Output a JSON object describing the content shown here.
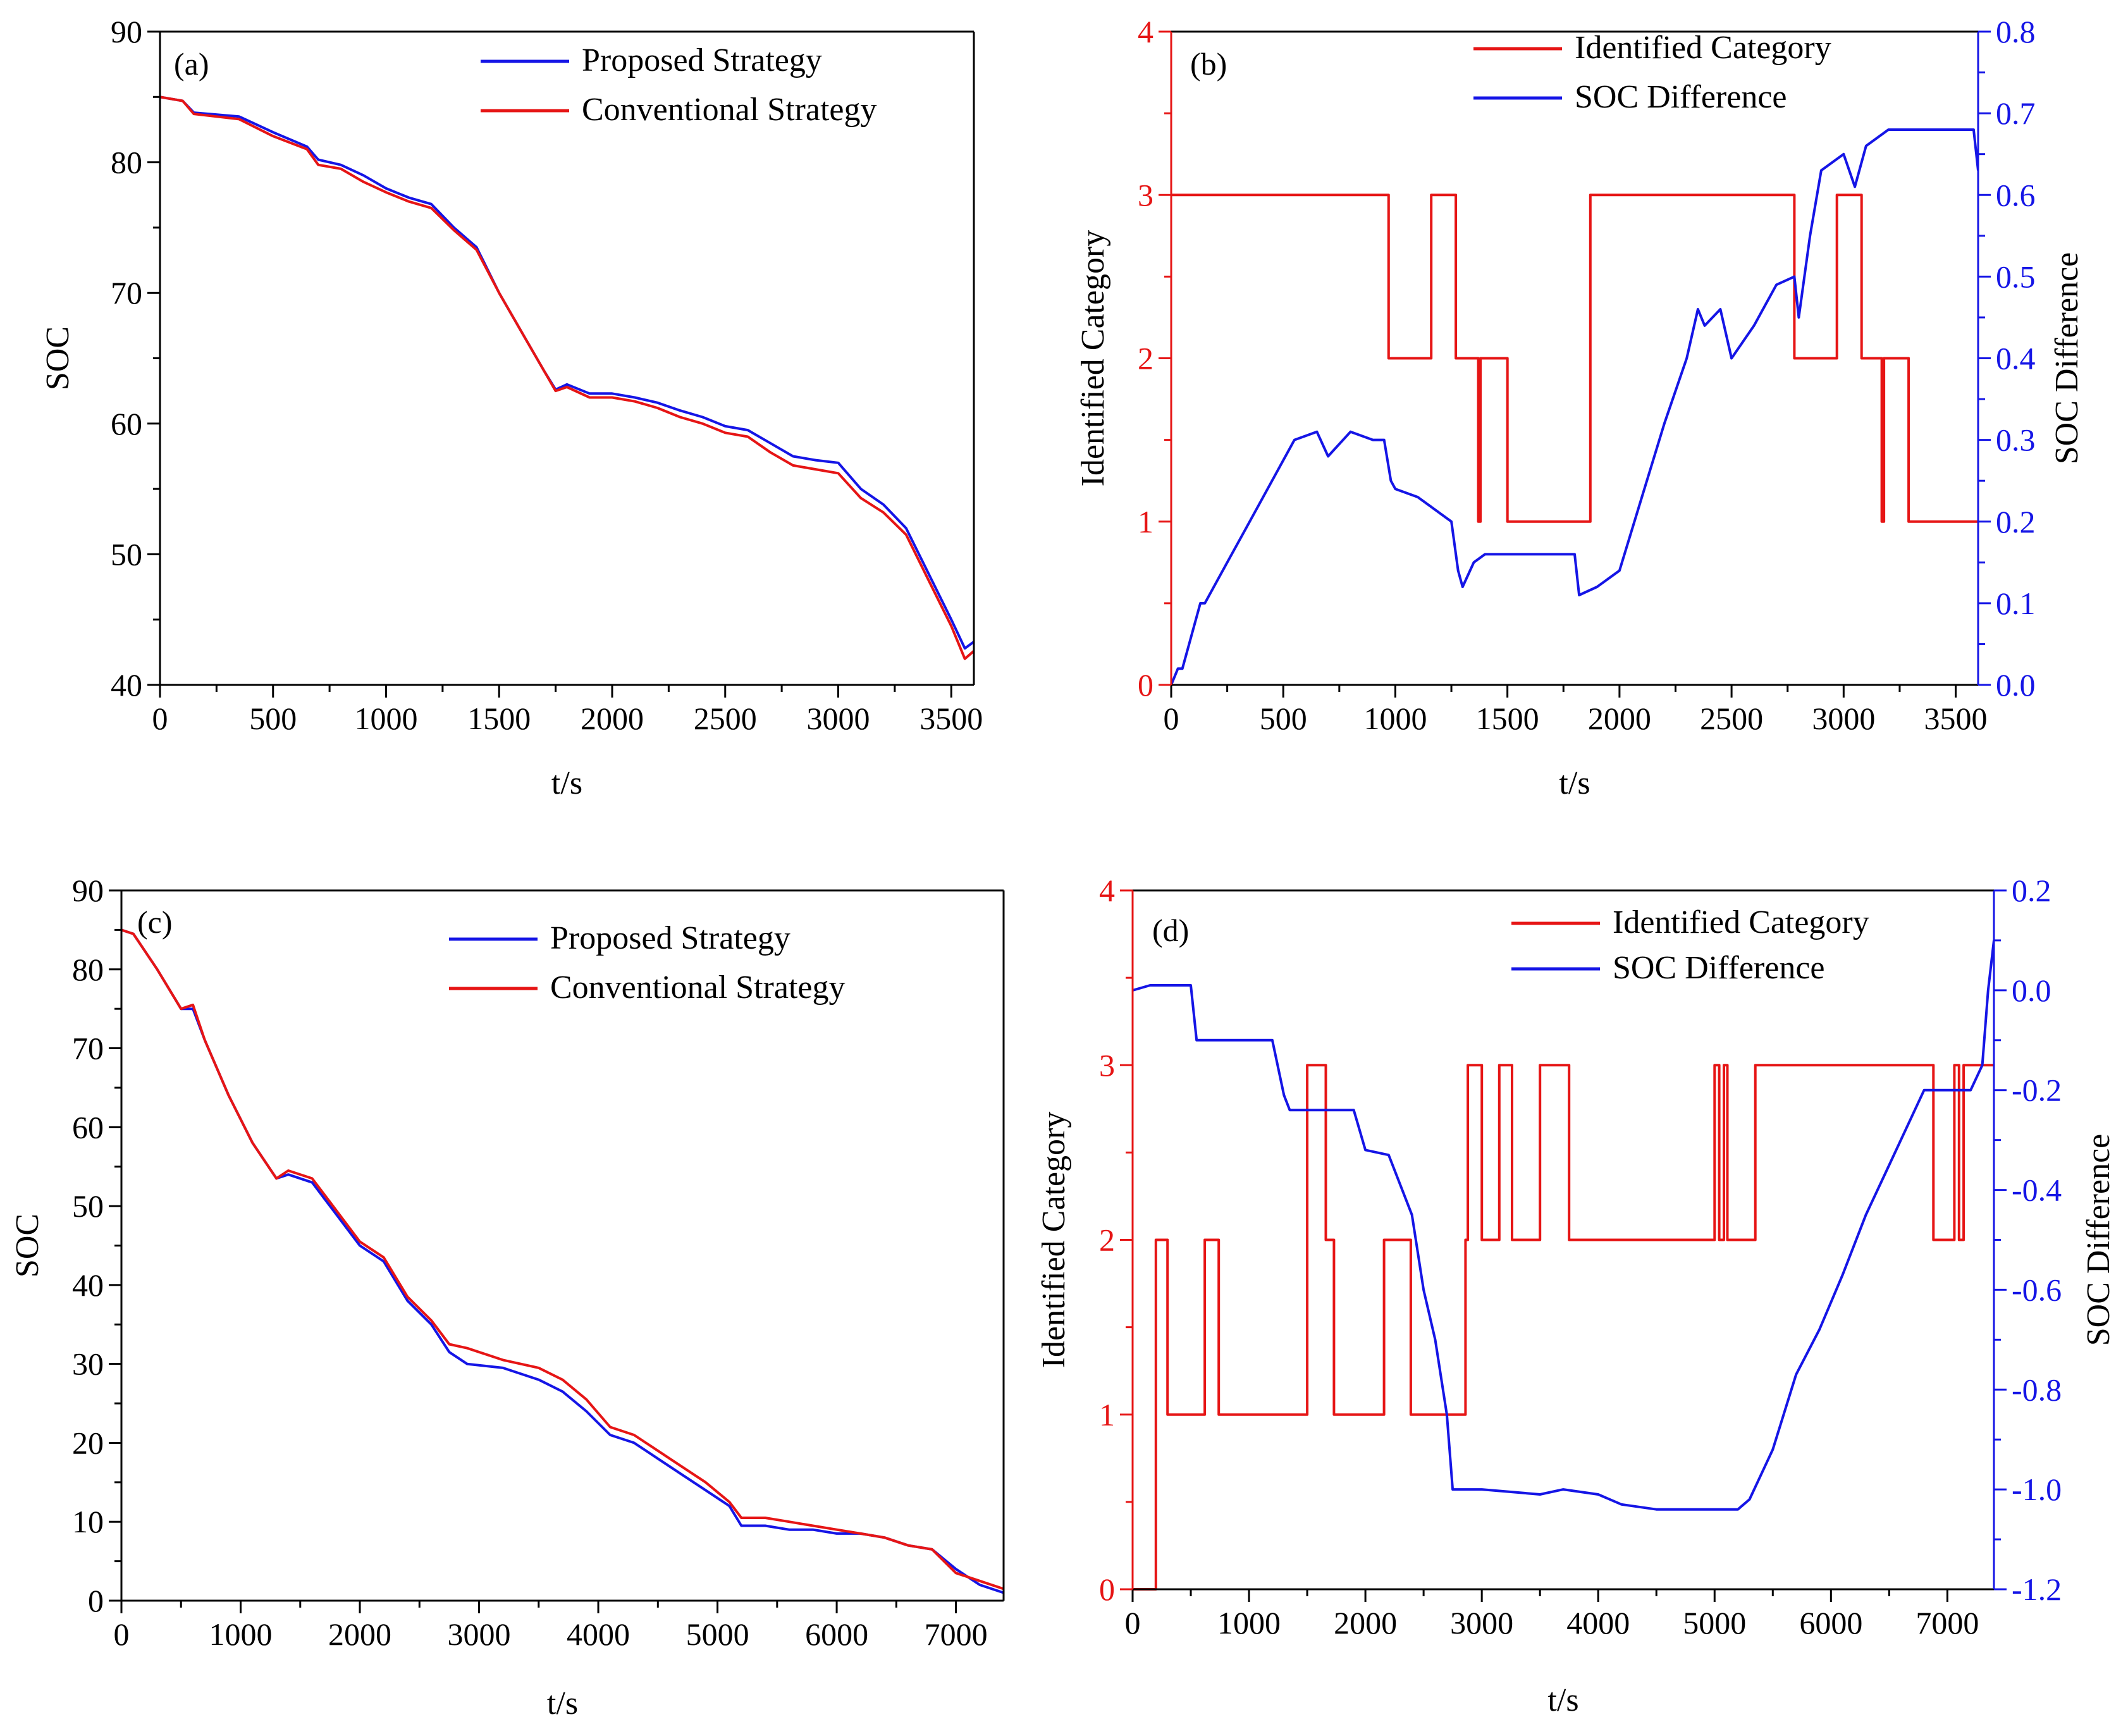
{
  "chart_data": [
    {
      "id": "a",
      "panel_label": "(a)",
      "type": "line",
      "xlabel": "t/s",
      "ylabel": "SOC",
      "xlim": [
        0,
        3600
      ],
      "ylim": [
        40,
        90
      ],
      "xticks": [
        0,
        500,
        1000,
        1500,
        2000,
        2500,
        3000,
        3500
      ],
      "yticks": [
        40,
        50,
        60,
        70,
        80,
        90
      ],
      "legend_position": "top-right",
      "series": [
        {
          "name": "Proposed Strategy",
          "color": "#1515e6",
          "axis": "left",
          "x": [
            0,
            100,
            150,
            350,
            500,
            650,
            700,
            800,
            900,
            1000,
            1100,
            1200,
            1300,
            1400,
            1500,
            1600,
            1700,
            1750,
            1800,
            1900,
            2000,
            2100,
            2200,
            2300,
            2400,
            2500,
            2600,
            2700,
            2800,
            2900,
            3000,
            3100,
            3200,
            3300,
            3400,
            3500,
            3560,
            3600
          ],
          "y": [
            85,
            84.7,
            83.8,
            83.5,
            82.3,
            81.2,
            80.2,
            79.8,
            79,
            78,
            77.3,
            76.8,
            75,
            73.5,
            70,
            67,
            64,
            62.6,
            63,
            62.3,
            62.3,
            62,
            61.6,
            61,
            60.5,
            59.8,
            59.5,
            58.5,
            57.5,
            57.2,
            57,
            55,
            53.8,
            52,
            48.5,
            45,
            42.8,
            43.3
          ]
        },
        {
          "name": "Conventional Strategy",
          "color": "#e61515",
          "axis": "left",
          "x": [
            0,
            100,
            150,
            350,
            500,
            650,
            700,
            800,
            900,
            1000,
            1100,
            1200,
            1300,
            1400,
            1500,
            1600,
            1700,
            1750,
            1800,
            1900,
            2000,
            2100,
            2200,
            2300,
            2400,
            2500,
            2600,
            2700,
            2800,
            2900,
            3000,
            3100,
            3200,
            3300,
            3400,
            3500,
            3560,
            3600
          ],
          "y": [
            85,
            84.7,
            83.7,
            83.3,
            82,
            81,
            79.8,
            79.5,
            78.5,
            77.7,
            77,
            76.5,
            74.8,
            73.3,
            70,
            67,
            64,
            62.5,
            62.8,
            62,
            62,
            61.7,
            61.2,
            60.5,
            60,
            59.3,
            59,
            57.8,
            56.8,
            56.5,
            56.2,
            54.3,
            53.2,
            51.5,
            48,
            44.5,
            42,
            42.6
          ]
        }
      ]
    },
    {
      "id": "b",
      "panel_label": "(b)",
      "type": "line",
      "xlabel": "t/s",
      "ylabel": "Identified Category",
      "ylabel_right": "SOC Difference",
      "xlim": [
        0,
        3600
      ],
      "ylim": [
        0,
        4
      ],
      "ylim_right": [
        0.0,
        0.8
      ],
      "xticks": [
        0,
        500,
        1000,
        1500,
        2000,
        2500,
        3000,
        3500
      ],
      "yticks": [
        0,
        1,
        2,
        3,
        4
      ],
      "yticks_right": [
        "0.0",
        "0.1",
        "0.2",
        "0.3",
        "0.4",
        "0.5",
        "0.6",
        "0.7",
        "0.8"
      ],
      "legend_position": "top-center",
      "series": [
        {
          "name": "Identified Category",
          "color": "#e61515",
          "axis": "left",
          "step": true,
          "x": [
            0,
            970,
            1160,
            1270,
            1370,
            1380,
            1500,
            1870,
            2780,
            2970,
            3080,
            3170,
            3180,
            3290,
            3310,
            3600
          ],
          "y": [
            3,
            2,
            3,
            2,
            1,
            2,
            1,
            3,
            2,
            3,
            2,
            1,
            2,
            1,
            1,
            1
          ]
        },
        {
          "name": "SOC Difference",
          "color": "#1515e6",
          "axis": "right",
          "x": [
            0,
            30,
            50,
            130,
            150,
            250,
            350,
            450,
            550,
            650,
            700,
            800,
            900,
            950,
            980,
            1000,
            1100,
            1150,
            1250,
            1280,
            1300,
            1350,
            1400,
            1500,
            1800,
            1820,
            1900,
            2000,
            2100,
            2200,
            2300,
            2350,
            2380,
            2450,
            2500,
            2600,
            2700,
            2780,
            2800,
            2850,
            2900,
            3000,
            3050,
            3100,
            3200,
            3300,
            3500,
            3580,
            3600
          ],
          "y": [
            0.0,
            0.02,
            0.02,
            0.1,
            0.1,
            0.15,
            0.2,
            0.25,
            0.3,
            0.31,
            0.28,
            0.31,
            0.3,
            0.3,
            0.25,
            0.24,
            0.23,
            0.22,
            0.2,
            0.14,
            0.12,
            0.15,
            0.16,
            0.16,
            0.16,
            0.11,
            0.12,
            0.14,
            0.23,
            0.32,
            0.4,
            0.46,
            0.44,
            0.46,
            0.4,
            0.44,
            0.49,
            0.5,
            0.45,
            0.55,
            0.63,
            0.65,
            0.61,
            0.66,
            0.68,
            0.68,
            0.68,
            0.68,
            0.63
          ]
        }
      ]
    },
    {
      "id": "c",
      "panel_label": "(c)",
      "type": "line",
      "xlabel": "t/s",
      "ylabel": "SOC",
      "xlim": [
        0,
        7400
      ],
      "ylim": [
        0,
        90
      ],
      "xticks": [
        0,
        1000,
        2000,
        3000,
        4000,
        5000,
        6000,
        7000
      ],
      "yticks": [
        0,
        10,
        20,
        30,
        40,
        50,
        60,
        70,
        80,
        90
      ],
      "legend_position": "top-right",
      "series": [
        {
          "name": "Proposed Strategy",
          "color": "#1515e6",
          "axis": "left",
          "x": [
            0,
            100,
            300,
            500,
            600,
            700,
            900,
            1100,
            1300,
            1400,
            1600,
            1800,
            2000,
            2200,
            2400,
            2600,
            2750,
            2900,
            3200,
            3500,
            3700,
            3900,
            4100,
            4300,
            4500,
            4700,
            4900,
            5100,
            5200,
            5400,
            5600,
            5800,
            6000,
            6200,
            6400,
            6600,
            6800,
            7000,
            7200,
            7400
          ],
          "y": [
            85,
            84.5,
            80,
            75,
            75,
            71,
            64,
            58,
            53.5,
            54,
            53,
            49,
            45,
            43,
            38,
            35,
            31.5,
            30,
            29.5,
            28,
            26.5,
            24,
            21,
            20,
            18,
            16,
            14,
            12,
            9.5,
            9.5,
            9,
            9,
            8.5,
            8.5,
            8,
            7,
            6.5,
            4,
            2,
            1
          ]
        },
        {
          "name": "Conventional Strategy",
          "color": "#e61515",
          "axis": "left",
          "x": [
            0,
            100,
            300,
            500,
            600,
            700,
            900,
            1100,
            1300,
            1400,
            1600,
            1800,
            2000,
            2200,
            2400,
            2600,
            2750,
            2900,
            3200,
            3500,
            3700,
            3900,
            4100,
            4300,
            4500,
            4700,
            4900,
            5100,
            5200,
            5400,
            5600,
            5800,
            6000,
            6200,
            6400,
            6600,
            6800,
            7000,
            7200,
            7400
          ],
          "y": [
            85,
            84.5,
            80,
            75,
            75.5,
            71,
            64,
            58,
            53.5,
            54.5,
            53.5,
            49.5,
            45.5,
            43.5,
            38.5,
            35.5,
            32.5,
            32,
            30.5,
            29.5,
            28,
            25.5,
            22,
            21,
            19,
            17,
            15,
            12.5,
            10.5,
            10.5,
            10,
            9.5,
            9,
            8.5,
            8,
            7,
            6.5,
            3.5,
            2.5,
            1.5
          ]
        }
      ]
    },
    {
      "id": "d",
      "panel_label": "(d)",
      "type": "line",
      "xlabel": "t/s",
      "ylabel": "Identified Category",
      "ylabel_right": "SOC Difference",
      "xlim": [
        0,
        7400
      ],
      "ylim": [
        0,
        4
      ],
      "ylim_right": [
        -1.2,
        0.2
      ],
      "xticks": [
        0,
        1000,
        2000,
        3000,
        4000,
        5000,
        6000,
        7000
      ],
      "yticks": [
        0,
        1,
        2,
        3,
        4
      ],
      "yticks_right": [
        "-1.2",
        "-1.0",
        "-0.8",
        "-0.6",
        "-0.4",
        "-0.2",
        "0.0",
        "0.2"
      ],
      "legend_position": "top-right",
      "series": [
        {
          "name": "Identified Category",
          "color": "#e61515",
          "axis": "left",
          "step": true,
          "x": [
            0,
            200,
            300,
            620,
            740,
            1500,
            1660,
            1730,
            1760,
            2160,
            2390,
            2860,
            2880,
            2910,
            3000,
            3150,
            3260,
            3350,
            3500,
            3750,
            5000,
            5040,
            5080,
            5110,
            5350,
            6880,
            7060,
            7100,
            7140,
            7400
          ],
          "y": [
            0,
            2,
            1,
            2,
            1,
            3,
            2,
            1,
            1,
            2,
            1,
            2,
            3,
            3,
            2,
            3,
            2,
            2,
            3,
            2,
            3,
            2,
            3,
            2,
            3,
            2,
            3,
            2,
            3,
            3
          ]
        },
        {
          "name": "SOC Difference",
          "color": "#1515e6",
          "axis": "right",
          "x": [
            0,
            150,
            500,
            550,
            1200,
            1300,
            1350,
            1900,
            2000,
            2200,
            2400,
            2500,
            2600,
            2700,
            2750,
            3000,
            3500,
            3700,
            4000,
            4200,
            4500,
            5000,
            5200,
            5300,
            5500,
            5700,
            5900,
            6100,
            6300,
            6500,
            6700,
            6800,
            7200,
            7300,
            7350,
            7400
          ],
          "y": [
            0.0,
            0.01,
            0.01,
            -0.1,
            -0.1,
            -0.21,
            -0.24,
            -0.24,
            -0.32,
            -0.33,
            -0.45,
            -0.6,
            -0.7,
            -0.85,
            -1.0,
            -1.0,
            -1.01,
            -1.0,
            -1.01,
            -1.03,
            -1.04,
            -1.04,
            -1.04,
            -1.02,
            -0.92,
            -0.77,
            -0.68,
            -0.57,
            -0.45,
            -0.35,
            -0.25,
            -0.2,
            -0.2,
            -0.15,
            0.0,
            0.1
          ]
        }
      ]
    }
  ]
}
